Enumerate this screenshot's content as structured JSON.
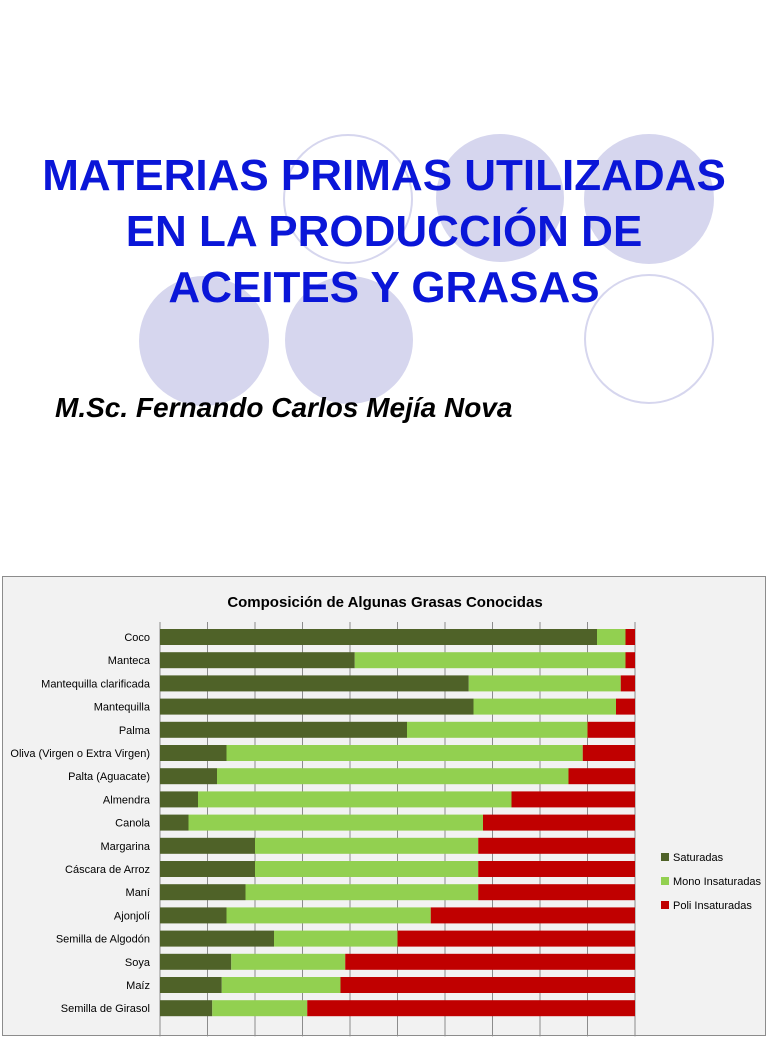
{
  "slide": {
    "title_lines": [
      "MATERIAS PRIMAS UTILIZADAS",
      "EN LA PRODUCCIÓN DE",
      "ACEITES Y GRASAS"
    ],
    "author": "M.Sc. Fernando Carlos Mejía Nova",
    "title_color": "#0a16d8",
    "circle_color": "#d6d6ee"
  },
  "chart_data": {
    "type": "bar",
    "orientation": "horizontal",
    "stacked": "percent",
    "title": "Composición de Algunas Grasas Conocidas",
    "categories": [
      "Coco",
      "Manteca",
      "Mantequilla clarificada",
      "Mantequilla",
      "Palma",
      "Oliva (Virgen o Extra Virgen)",
      "Palta (Aguacate)",
      "Almendra",
      "Canola",
      "Margarina",
      "Cáscara de Arroz",
      "Maní",
      "Ajonjolí",
      "Semilla de Algodón",
      "Soya",
      "Maíz",
      "Semilla de Girasol"
    ],
    "series": [
      {
        "name": "Saturadas",
        "color": "#4f6228",
        "values": [
          92,
          41,
          65,
          66,
          52,
          14,
          12,
          8,
          6,
          20,
          20,
          18,
          14,
          24,
          15,
          13,
          11
        ]
      },
      {
        "name": "Mono Insaturadas",
        "color": "#92d050",
        "values": [
          6,
          57,
          32,
          30,
          38,
          75,
          74,
          66,
          62,
          47,
          47,
          49,
          43,
          26,
          24,
          25,
          20
        ]
      },
      {
        "name": "Poli Insaturadas",
        "color": "#c00000",
        "values": [
          2,
          2,
          3,
          4,
          10,
          11,
          14,
          26,
          32,
          33,
          33,
          33,
          43,
          50,
          61,
          62,
          69
        ]
      }
    ],
    "xlim": [
      0,
      100
    ],
    "grid": true,
    "legend": "right"
  }
}
